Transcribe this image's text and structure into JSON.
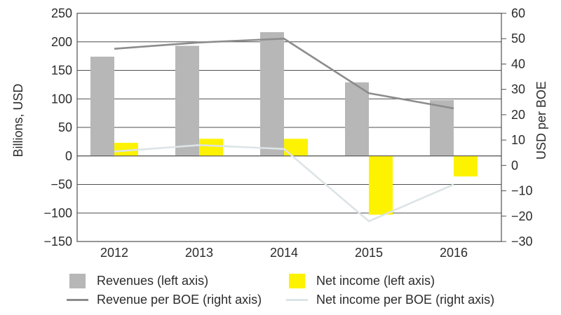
{
  "chart_data": {
    "type": "combo",
    "title": "",
    "categories": [
      "2012",
      "2013",
      "2014",
      "2015",
      "2016"
    ],
    "left_axis": {
      "label": "Billions, USD",
      "min": -150,
      "max": 250,
      "ticks": [
        250,
        200,
        150,
        100,
        50,
        0,
        -50,
        -100,
        -150
      ]
    },
    "right_axis": {
      "label": "USD per BOE",
      "min": -30,
      "max": 60,
      "ticks": [
        60,
        50,
        40,
        30,
        20,
        10,
        0,
        -10,
        -20,
        -30
      ]
    },
    "series": [
      {
        "name": "Revenues (left axis)",
        "kind": "bar",
        "axis": "left",
        "color": "#b7b7b7",
        "values": [
          174,
          193,
          217,
          129,
          98
        ]
      },
      {
        "name": "Net income (left axis)",
        "kind": "bar",
        "axis": "left",
        "color": "#fdf200",
        "values": [
          23,
          30,
          30,
          -103,
          -36
        ]
      },
      {
        "name": "Revenue per BOE (right axis)",
        "kind": "line",
        "axis": "right",
        "color": "#8c8c8c",
        "values": [
          46,
          48.5,
          50,
          28.5,
          22.5
        ]
      },
      {
        "name": "Net income per BOE (right axis)",
        "kind": "line",
        "axis": "right",
        "color": "#dde4e6",
        "values": [
          5.5,
          8,
          6.5,
          -22,
          -7.5
        ]
      }
    ],
    "grid": true,
    "legend_position": "bottom"
  },
  "colors": {
    "grid": "#4f4f4f",
    "text": "#2b2b2b",
    "background": "#ffffff"
  }
}
